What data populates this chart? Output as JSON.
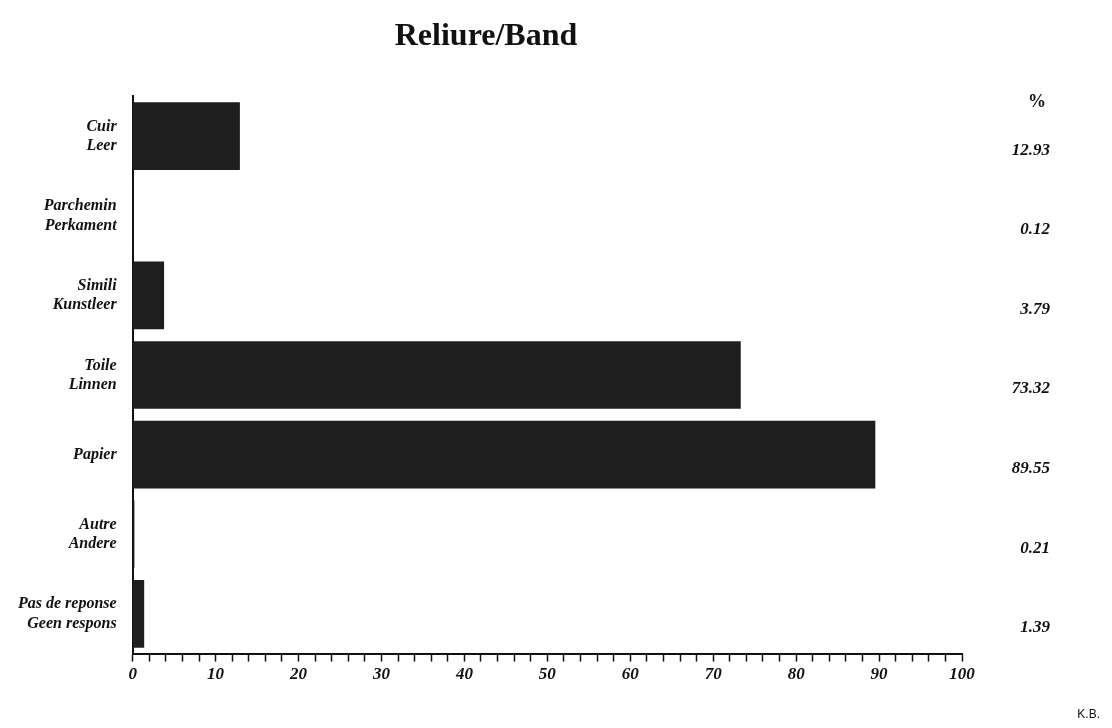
{
  "chart_data": {
    "type": "bar",
    "orientation": "horizontal",
    "title": "Reliure/Band",
    "categories": [
      "Cuir\nLeer",
      "Parchemin\nPerkament",
      "Simili\nKunstleer",
      "Toile\nLinnen",
      "Papier",
      "Autre\nAndere",
      "Pas de reponse\nGeen respons"
    ],
    "values": [
      12.93,
      0.12,
      3.79,
      73.32,
      89.55,
      0.21,
      1.39
    ],
    "color": "#1e1e1e",
    "xlim": [
      0,
      100
    ],
    "xticks": [
      0,
      {
        "value": 2,
        "label": null
      },
      {
        "value": 4,
        "label": null
      },
      {
        "value": 6,
        "label": null
      },
      {
        "value": 8,
        "label": null
      },
      10,
      {
        "value": 12,
        "label": null
      },
      {
        "value": 14,
        "label": null
      },
      {
        "value": 16,
        "label": null
      },
      {
        "value": 18,
        "label": null
      },
      20,
      {
        "value": 22,
        "label": null
      },
      {
        "value": 24,
        "label": null
      },
      {
        "value": 26,
        "label": null
      },
      {
        "value": 28,
        "label": null
      },
      30,
      {
        "value": 32,
        "label": null
      },
      {
        "value": 34,
        "label": null
      },
      {
        "value": 36,
        "label": null
      },
      {
        "value": 38,
        "label": null
      },
      40,
      {
        "value": 42,
        "label": null
      },
      {
        "value": 44,
        "label": null
      },
      {
        "value": 46,
        "label": null
      },
      {
        "value": 48,
        "label": null
      },
      50,
      {
        "value": 52,
        "label": null
      },
      {
        "value": 54,
        "label": null
      },
      {
        "value": 56,
        "label": null
      },
      {
        "value": 58,
        "label": null
      },
      60,
      {
        "value": 62,
        "label": null
      },
      {
        "value": 64,
        "label": null
      },
      {
        "value": 66,
        "label": null
      },
      {
        "value": 68,
        "label": null
      },
      70,
      {
        "value": 72,
        "label": null
      },
      {
        "value": 74,
        "label": null
      },
      {
        "value": 76,
        "label": null
      },
      {
        "value": 78,
        "label": null
      },
      80,
      {
        "value": 82,
        "label": null
      },
      {
        "value": 84,
        "label": null
      },
      {
        "value": 86,
        "label": null
      },
      {
        "value": 88,
        "label": null
      },
      90,
      {
        "value": 92,
        "label": null
      },
      {
        "value": 94,
        "label": null
      },
      {
        "value": 96,
        "label": null
      },
      {
        "value": 98,
        "label": null
      },
      100
    ],
    "data_labels": true,
    "annotations": [
      "%",
      "K.B."
    ],
    "grid": false,
    "legend": false
  }
}
